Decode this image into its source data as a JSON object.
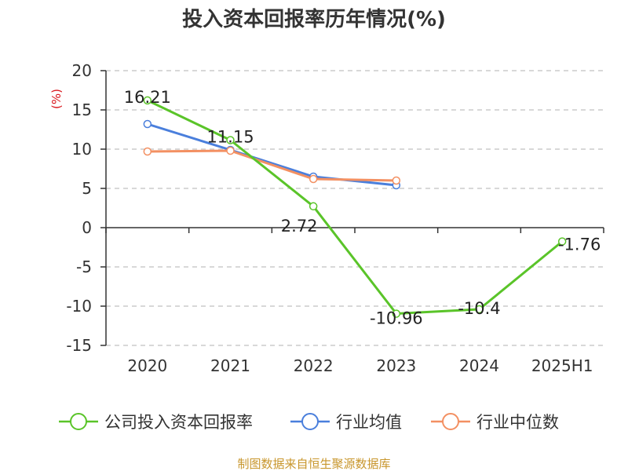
{
  "chart_data": {
    "type": "line",
    "title": "投入资本回报率历年情况(%)",
    "ylabel": "(%)",
    "xlabel": "",
    "categories": [
      "2020",
      "2021",
      "2022",
      "2023",
      "2024",
      "2025H1"
    ],
    "ylim": [
      -15,
      20
    ],
    "yticks": [
      20,
      15,
      10,
      5,
      0,
      -5,
      -10,
      -15
    ],
    "grid": true,
    "legend_position": "bottom",
    "series": [
      {
        "name": "公司投入资本回报率",
        "color": "#5ac429",
        "values": [
          16.21,
          11.15,
          2.72,
          -10.96,
          -10.4,
          -1.76
        ],
        "labels": [
          "16.21",
          "11.15",
          "2.72",
          "-10.96",
          "-10.4",
          "-1.76"
        ]
      },
      {
        "name": "行业均值",
        "color": "#4a7fdc",
        "values": [
          13.2,
          9.9,
          6.5,
          5.4,
          null,
          null
        ]
      },
      {
        "name": "行业中位数",
        "color": "#f39062",
        "values": [
          9.7,
          9.8,
          6.2,
          6.0,
          null,
          null
        ]
      }
    ],
    "source": "制图数据来自恒生聚源数据库",
    "colors": {
      "axis": "#333333",
      "grid": "#cccccc",
      "ylabel": "#d9141a",
      "source": "#c8962c"
    }
  }
}
